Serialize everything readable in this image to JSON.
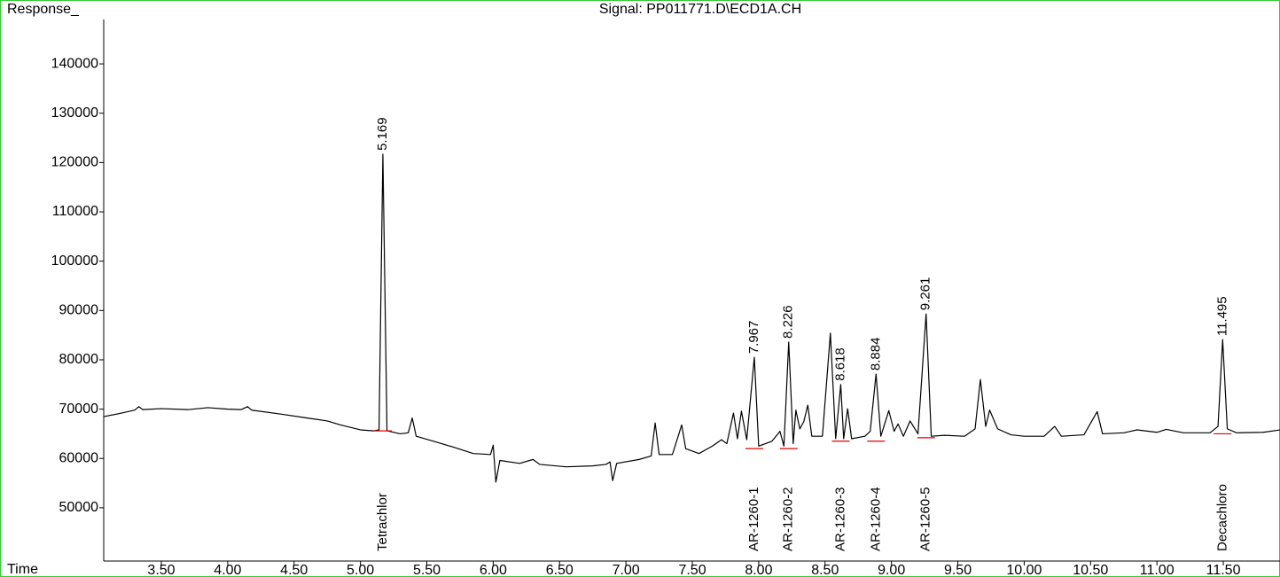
{
  "chart_data": {
    "type": "line",
    "title": "Signal: PP011771.D\\ECD1A.CH",
    "ylabel": "Response_",
    "xlabel": "Time",
    "xlim": [
      3.066,
      11.927
    ],
    "ylim": [
      39200,
      149000
    ],
    "xticks": [
      {
        "value": 3.5,
        "label": "3.50"
      },
      {
        "value": 4.0,
        "label": "4.00"
      },
      {
        "value": 4.5,
        "label": "4.50"
      },
      {
        "value": 5.0,
        "label": "5.00"
      },
      {
        "value": 5.5,
        "label": "5.50"
      },
      {
        "value": 6.0,
        "label": "6.00"
      },
      {
        "value": 6.5,
        "label": "6.50"
      },
      {
        "value": 7.0,
        "label": "7.00"
      },
      {
        "value": 7.5,
        "label": "7.50"
      },
      {
        "value": 8.0,
        "label": "8.00"
      },
      {
        "value": 8.5,
        "label": "8.50"
      },
      {
        "value": 9.0,
        "label": "9.00"
      },
      {
        "value": 9.5,
        "label": "9.50"
      },
      {
        "value": 10.0,
        "label": "10.00"
      },
      {
        "value": 10.5,
        "label": "10.50"
      },
      {
        "value": 11.0,
        "label": "11.00"
      },
      {
        "value": 11.5,
        "label": "11.50"
      }
    ],
    "yticks": [
      50000,
      60000,
      70000,
      80000,
      90000,
      100000,
      110000,
      120000,
      130000,
      140000
    ],
    "x": [
      3.07,
      3.2,
      3.3,
      3.33,
      3.36,
      3.5,
      3.7,
      3.85,
      4.0,
      4.1,
      4.15,
      4.18,
      4.4,
      4.6,
      4.75,
      4.85,
      5.0,
      5.1,
      5.14,
      5.169,
      5.2,
      5.3,
      5.36,
      5.39,
      5.42,
      5.55,
      5.7,
      5.85,
      5.98,
      6.0,
      6.02,
      6.05,
      6.2,
      6.3,
      6.35,
      6.55,
      6.75,
      6.85,
      6.88,
      6.9,
      6.93,
      7.1,
      7.19,
      7.22,
      7.25,
      7.35,
      7.42,
      7.45,
      7.55,
      7.65,
      7.72,
      7.76,
      7.81,
      7.84,
      7.87,
      7.91,
      7.967,
      8.0,
      8.1,
      8.13,
      8.16,
      8.19,
      8.226,
      8.26,
      8.28,
      8.31,
      8.34,
      8.37,
      8.4,
      8.48,
      8.54,
      8.58,
      8.618,
      8.64,
      8.67,
      8.7,
      8.8,
      8.84,
      8.884,
      8.92,
      8.98,
      9.02,
      9.05,
      9.09,
      9.14,
      9.2,
      9.261,
      9.3,
      9.4,
      9.55,
      9.63,
      9.67,
      9.71,
      9.74,
      9.8,
      9.9,
      10.0,
      10.15,
      10.23,
      10.28,
      10.45,
      10.55,
      10.59,
      10.75,
      10.85,
      11.0,
      11.07,
      11.2,
      11.4,
      11.46,
      11.495,
      11.53,
      11.6,
      11.8,
      11.93
    ],
    "series": [
      {
        "color": "#000000",
        "values": [
          68500,
          69200,
          69800,
          70500,
          69900,
          70100,
          69900,
          70300,
          70000,
          69900,
          70500,
          69800,
          69000,
          68200,
          67600,
          66800,
          65800,
          65600,
          65800,
          121700,
          65600,
          65000,
          65200,
          68200,
          64500,
          63500,
          62300,
          61000,
          60800,
          62700,
          55200,
          59600,
          59000,
          59800,
          58800,
          58300,
          58500,
          58800,
          59300,
          55500,
          59000,
          59800,
          60500,
          67200,
          60800,
          60800,
          66800,
          62000,
          61000,
          62500,
          63800,
          63000,
          69200,
          64000,
          69600,
          63800,
          80500,
          62500,
          63500,
          64500,
          65500,
          62500,
          83600,
          63000,
          69800,
          66000,
          67500,
          70800,
          64500,
          64500,
          85400,
          64000,
          75000,
          64000,
          70100,
          64000,
          64500,
          65500,
          77100,
          64500,
          69700,
          65500,
          67000,
          64500,
          67600,
          65000,
          89300,
          64500,
          64700,
          64500,
          66000,
          76000,
          66500,
          69800,
          66000,
          64800,
          64500,
          64500,
          66500,
          64500,
          64800,
          69500,
          65000,
          65200,
          65800,
          65300,
          65900,
          65200,
          65200,
          66500,
          84100,
          66000,
          65200,
          65300,
          65800
        ]
      }
    ],
    "peaks": [
      {
        "rt": 5.169,
        "apex": 121700,
        "baseline": 65600,
        "compound": "Tetrachlor"
      },
      {
        "rt": 7.967,
        "apex": 80500,
        "baseline": 62000,
        "compound": "AR-1260-1"
      },
      {
        "rt": 8.226,
        "apex": 83600,
        "baseline": 62000,
        "compound": "AR-1260-2"
      },
      {
        "rt": 8.618,
        "apex": 75000,
        "baseline": 63500,
        "compound": "AR-1260-3"
      },
      {
        "rt": 8.884,
        "apex": 77100,
        "baseline": 63500,
        "compound": "AR-1260-4"
      },
      {
        "rt": 9.261,
        "apex": 89300,
        "baseline": 64200,
        "compound": "AR-1260-5"
      },
      {
        "rt": 11.495,
        "apex": 84100,
        "baseline": 65000,
        "compound": "Decachloro"
      }
    ]
  }
}
